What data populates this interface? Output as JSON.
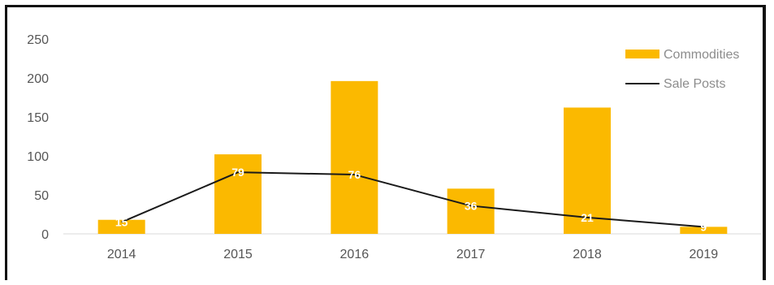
{
  "chart_data": {
    "type": "bar",
    "categories": [
      "2014",
      "2015",
      "2016",
      "2017",
      "2018",
      "2019"
    ],
    "series": [
      {
        "name": "Commodities",
        "type": "bar",
        "color": "#fbb900",
        "values": [
          18,
          102,
          196,
          58,
          162,
          9
        ]
      },
      {
        "name": "Sale Posts",
        "type": "line",
        "color": "#1a1a1a",
        "values": [
          15,
          79,
          76,
          36,
          21,
          9
        ],
        "data_labels": [
          "15",
          "79",
          "76",
          "36",
          "21",
          "9"
        ]
      }
    ],
    "ylim": [
      0,
      250
    ],
    "y_ticks": [
      "0",
      "50",
      "100",
      "150",
      "200",
      "250"
    ],
    "grid": false,
    "legend_position": "top-right"
  }
}
